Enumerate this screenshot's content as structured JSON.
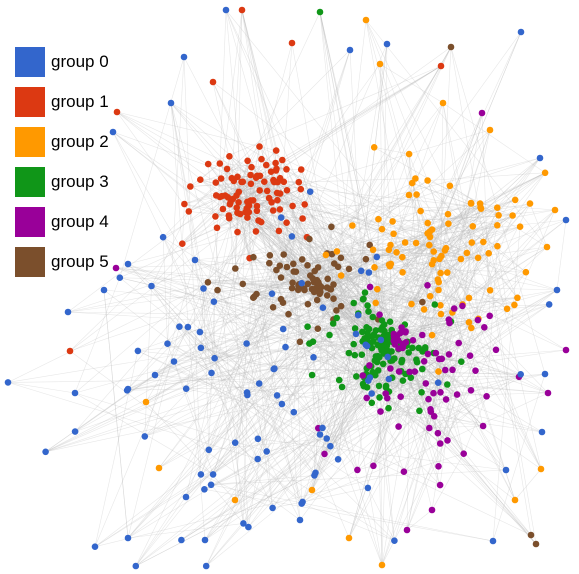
{
  "legend": {
    "items": [
      {
        "label": "group 0",
        "color": "#3366cc"
      },
      {
        "label": "group 1",
        "color": "#dc3912"
      },
      {
        "label": "group 2",
        "color": "#ff9900"
      },
      {
        "label": "group 3",
        "color": "#109618"
      },
      {
        "label": "group 4",
        "color": "#990099"
      },
      {
        "label": "group 5",
        "color": "#7b4f2c"
      }
    ]
  },
  "graph": {
    "edge_color": "#bbbbbb",
    "groups": [
      0,
      1,
      2,
      3,
      4,
      5
    ]
  }
}
